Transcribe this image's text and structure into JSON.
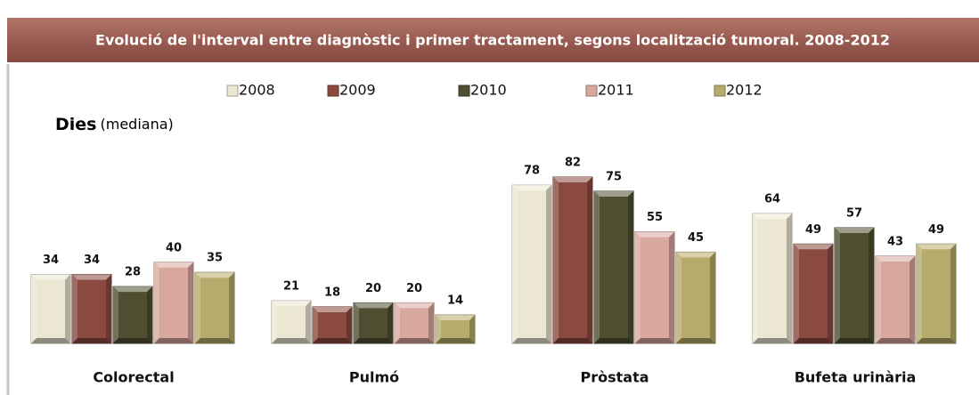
{
  "chart_data": {
    "type": "bar",
    "title": "Evolució de l'interval entre diagnòstic  i primer tractament, segons localització  tumoral. 2008-2012",
    "ylabel": {
      "main": "Dies",
      "note": "(mediana)"
    },
    "categories": [
      "Colorectal",
      "Pulmó",
      "Pròstata",
      "Bufeta urinària"
    ],
    "series": [
      {
        "name": "2008",
        "color": "#ebe7d3",
        "values": [
          34,
          21,
          78,
          64
        ]
      },
      {
        "name": "2009",
        "color": "#8a4a40",
        "values": [
          34,
          18,
          82,
          49
        ]
      },
      {
        "name": "2010",
        "color": "#4f4e30",
        "values": [
          28,
          20,
          75,
          57
        ]
      },
      {
        "name": "2011",
        "color": "#d8a79e",
        "values": [
          40,
          20,
          55,
          43
        ]
      },
      {
        "name": "2012",
        "color": "#b7ab6b",
        "values": [
          35,
          14,
          45,
          49
        ]
      }
    ],
    "legend": "top",
    "data_labels": true
  }
}
